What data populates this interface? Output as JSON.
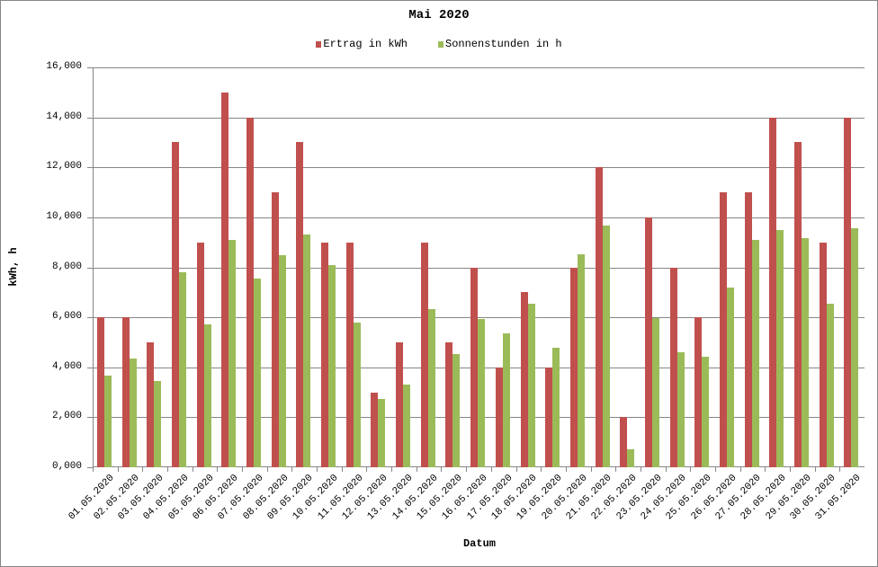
{
  "chart_data": {
    "type": "bar",
    "title": "Mai 2020",
    "xlabel": "Datum",
    "ylabel": "kWh, h",
    "ylim": [
      0,
      16
    ],
    "yticks": [
      "0,000",
      "2,000",
      "4,000",
      "6,000",
      "8,000",
      "10,000",
      "12,000",
      "14,000",
      "16,000"
    ],
    "grid": true,
    "legend_position": "top",
    "categories": [
      "01.05.2020",
      "02.05.2020",
      "03.05.2020",
      "04.05.2020",
      "05.05.2020",
      "06.05.2020",
      "07.05.2020",
      "08.05.2020",
      "09.05.2020",
      "10.05.2020",
      "11.05.2020",
      "12.05.2020",
      "13.05.2020",
      "14.05.2020",
      "15.05.2020",
      "16.05.2020",
      "17.05.2020",
      "18.05.2020",
      "19.05.2020",
      "20.05.2020",
      "21.05.2020",
      "22.05.2020",
      "23.05.2020",
      "24.05.2020",
      "25.05.2020",
      "26.05.2020",
      "27.05.2020",
      "28.05.2020",
      "29.05.2020",
      "30.05.2020",
      "31.05.2020"
    ],
    "series": [
      {
        "name": "Ertrag in kWh",
        "color": "#C0504D",
        "values": [
          6,
          6,
          5,
          13,
          9,
          15,
          14,
          11,
          13,
          9,
          9,
          3,
          5,
          9,
          5,
          8,
          4,
          7,
          4,
          8,
          12,
          2,
          10,
          8,
          6,
          11,
          11,
          14,
          13,
          9,
          14
        ]
      },
      {
        "name": "Sonnenstunden in h",
        "color": "#9BBB59",
        "values": [
          3.67,
          4.35,
          3.45,
          7.8,
          5.72,
          9.1,
          7.55,
          8.5,
          9.3,
          8.1,
          5.8,
          2.73,
          3.3,
          6.33,
          4.53,
          5.93,
          5.36,
          6.55,
          4.78,
          8.53,
          9.68,
          0.72,
          5.98,
          4.6,
          4.42,
          7.2,
          9.1,
          9.5,
          9.17,
          6.55,
          9.57
        ]
      }
    ]
  }
}
